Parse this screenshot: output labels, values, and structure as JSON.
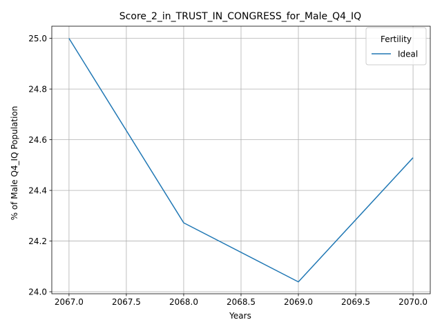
{
  "chart_data": {
    "type": "line",
    "title": "Score_2_in_TRUST_IN_CONGRESS_for_Male_Q4_IQ",
    "xlabel": "Years",
    "ylabel": "% of Male Q4_IQ Population",
    "x": [
      2067,
      2068,
      2069,
      2070
    ],
    "series": [
      {
        "name": "Ideal",
        "values": [
          25.0,
          24.272,
          24.039,
          24.529
        ]
      }
    ],
    "xlim": [
      2066.85,
      2070.15
    ],
    "ylim": [
      23.992,
      25.048
    ],
    "xticks": [
      2067.0,
      2067.5,
      2068.0,
      2068.5,
      2069.0,
      2069.5,
      2070.0
    ],
    "xtick_labels": [
      "2067.0",
      "2067.5",
      "2068.0",
      "2068.5",
      "2069.0",
      "2069.5",
      "2070.0"
    ],
    "yticks": [
      24.0,
      24.2,
      24.4,
      24.6,
      24.8,
      25.0
    ],
    "ytick_labels": [
      "24.0",
      "24.2",
      "24.4",
      "24.6",
      "24.8",
      "25.0"
    ],
    "grid": true,
    "legend": {
      "title": "Fertility",
      "position": "top-right"
    },
    "colors": {
      "series": "#1f77b4",
      "grid": "#b0b0b0",
      "axes": "#000000"
    }
  }
}
